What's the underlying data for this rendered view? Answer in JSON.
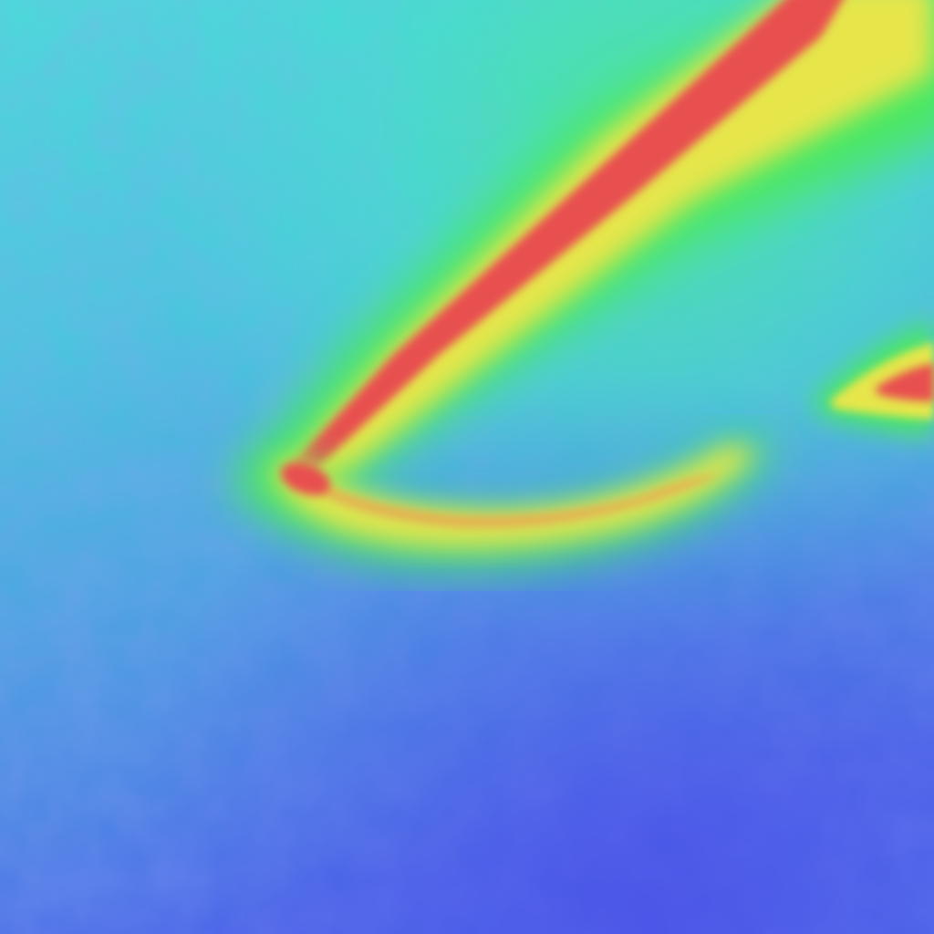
{
  "map": {
    "kind": "false-color intensity heatmap",
    "palette": {
      "low": "#4a5ee8",
      "low_mid": "#4aa0e0",
      "mid": "#48e0d8",
      "mid_high": "#4ce868",
      "high": "#e8e84c",
      "peak": "#e85050"
    },
    "labels": [],
    "legend": null
  }
}
